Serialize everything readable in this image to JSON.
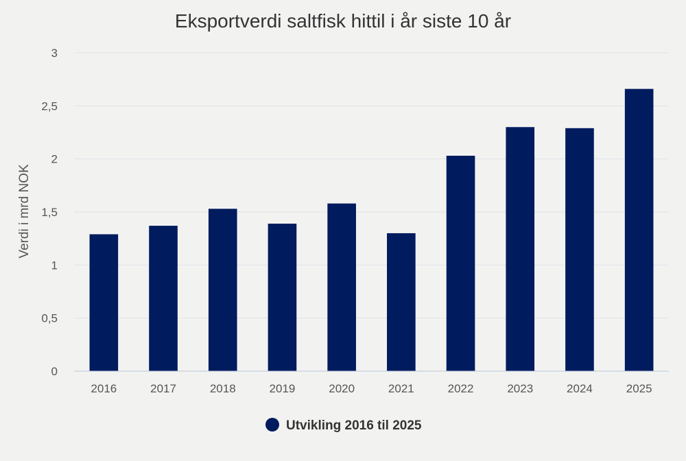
{
  "chart_data": {
    "type": "bar",
    "title": "Eksportverdi saltfisk hittil i år siste 10 år",
    "xlabel": "",
    "ylabel": "Verdi i mrd NOK",
    "categories": [
      "2016",
      "2017",
      "2018",
      "2019",
      "2020",
      "2021",
      "2022",
      "2023",
      "2024",
      "2025"
    ],
    "series": [
      {
        "name": "Utvikling 2016 til 2025",
        "values": [
          1.29,
          1.37,
          1.53,
          1.39,
          1.58,
          1.3,
          2.03,
          2.3,
          2.29,
          2.66
        ],
        "color": "#001b5e"
      }
    ],
    "ylim": [
      0,
      3
    ],
    "yticks": [
      "0",
      "0,5",
      "1",
      "1,5",
      "2",
      "2,5",
      "3"
    ],
    "ytick_values": [
      0,
      0.5,
      1,
      1.5,
      2,
      2.5,
      3
    ],
    "grid": true,
    "legend_position": "bottom-center",
    "colors": {
      "background": "#f2f3f1",
      "bar": "#001b5e",
      "grid": "#dde2e8",
      "axis": "#b8c4d6",
      "text": "#333333",
      "tick_text": "#555555"
    }
  }
}
